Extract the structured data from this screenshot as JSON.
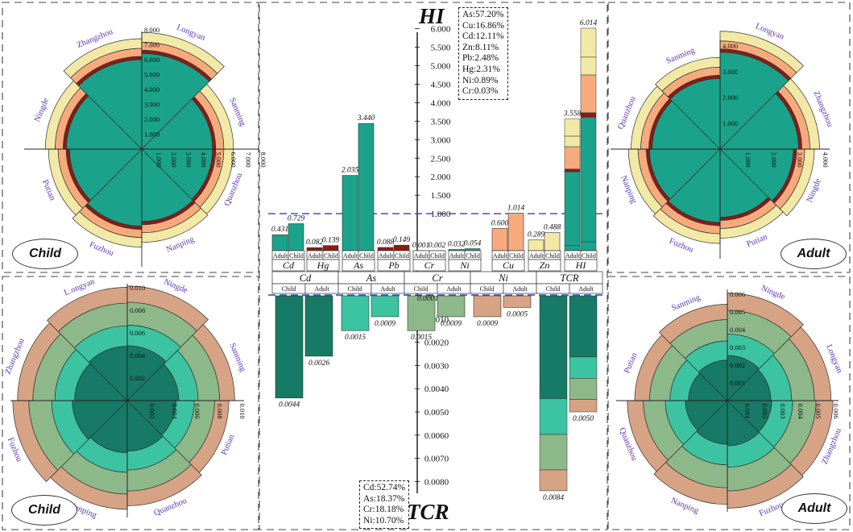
{
  "colors": {
    "teal": "#1aa38a",
    "teal_dark": "#167a66",
    "orange": "#f7ab7d",
    "pale_yellow": "#f1e9a5",
    "dark_red": "#8b1b14",
    "tan": "#d7a385",
    "sage": "#8db889",
    "light_teal": "#3cc3a2",
    "dashed_line": "#2b3fd6"
  },
  "center": {
    "hi_title": "HI",
    "tcr_title": "TCR",
    "hi_percent": [
      "As:57.20%",
      "Cu:16.86%",
      "Cd:12.11%",
      "Zn:8.11%",
      "Pb:2.48%",
      "Hg:2.31%",
      "Ni:0.89%",
      "Cr:0.03%"
    ],
    "tcr_percent": [
      "Cd:52.74%",
      "As:18.37%",
      "Cr:18.18%",
      "Ni:10.70%"
    ],
    "hi_ticks": [
      "1.000",
      "1.500",
      "2.000",
      "2.500",
      "3.000",
      "3.500",
      "4.000",
      "4.500",
      "5.000",
      "5.500",
      "6.000"
    ],
    "tcr_ticks": [
      "0.0010",
      "0.0020",
      "0.0030",
      "0.0040",
      "0.0050",
      "0.0060",
      "0.0070",
      "0.0080"
    ]
  },
  "panel_labels": {
    "child": "Child",
    "adult": "Adult"
  },
  "chart_data": [
    {
      "type": "bar",
      "title": "HI",
      "categories": [
        "Cd",
        "Hg",
        "As",
        "Pb",
        "Cr",
        "Ni",
        "Cu",
        "Zn",
        "HI"
      ],
      "group_labels": [
        "Adult",
        "Child"
      ],
      "series": [
        {
          "name": "Adult",
          "values": [
            0.431,
            0.082,
            2.035,
            0.088,
            0.001,
            0.032,
            0.6,
            0.289,
            3.558
          ],
          "labels": [
            "0.431",
            "0.082",
            "2.035",
            "0.088",
            "0.001",
            "0.032",
            "0.600",
            "0.289",
            "3.558"
          ]
        },
        {
          "name": "Child",
          "values": [
            0.729,
            0.139,
            3.44,
            0.149,
            0.002,
            0.054,
            1.014,
            0.488,
            6.014
          ],
          "labels": [
            "0.729",
            "0.139",
            "3.440",
            "0.149",
            "0.002",
            "0.054",
            "1.014",
            "0.488",
            "6.014"
          ]
        }
      ],
      "threshold": 1.0,
      "ylim": [
        0,
        6.0
      ]
    },
    {
      "type": "bar",
      "title": "TCR",
      "categories": [
        "Cd",
        "As",
        "Cr",
        "Ni",
        "TCR"
      ],
      "group_labels": [
        "Child",
        "Adult"
      ],
      "series": [
        {
          "name": "Child",
          "values": [
            0.0044,
            0.0015,
            0.0015,
            0.0009,
            0.0084
          ],
          "labels": [
            "0.0044",
            "0.0015",
            "0.0015",
            "0.0009",
            "0.0084"
          ]
        },
        {
          "name": "Adult",
          "values": [
            0.0026,
            0.0009,
            0.0009,
            0.0005,
            0.005
          ],
          "labels": [
            "0.0026",
            "0.0009",
            "0.0009",
            "0.0005",
            "0.0050"
          ]
        }
      ],
      "threshold": 0.0001,
      "threshold_label": "0.0001",
      "ylim": [
        0,
        0.0085
      ]
    },
    {
      "type": "pie",
      "title": "HI Child",
      "categories": [
        "Longyan",
        "Sanming",
        "Quanzhou",
        "Nanping",
        "Fuzhou",
        "Putian",
        "Ningde",
        "Zhangzhou"
      ],
      "values": [
        7.5,
        5.9,
        5.9,
        6.0,
        6.3,
        6.0,
        6.2,
        7.1
      ],
      "axis_ticks": [
        "1.000",
        "2.000",
        "3.000",
        "4.000",
        "5.000",
        "6.000",
        "7.000",
        "8.000"
      ]
    },
    {
      "type": "pie",
      "title": "HI Adult",
      "categories": [
        "Longyan",
        "Zhangzhou",
        "Ningde",
        "Putian",
        "Fuzhou",
        "Nanping",
        "Quanzhou",
        "Sanming"
      ],
      "values": [
        4.5,
        3.8,
        3.6,
        3.4,
        3.6,
        3.5,
        3.4,
        3.5
      ],
      "axis_ticks": [
        "1.000",
        "2.000",
        "3.000",
        "4.000"
      ]
    },
    {
      "type": "pie",
      "title": "TCR Child",
      "categories": [
        "Ningde",
        "Sanming",
        "Putian",
        "Quanzhou",
        "Nanping",
        "Fuzhou",
        "Zhangzhou",
        "L.ongyan"
      ],
      "values": [
        0.0098,
        0.0092,
        0.0087,
        0.009,
        0.0093,
        0.0098,
        0.0094,
        0.0097
      ],
      "axis_ticks": [
        "0.002",
        "0.004",
        "0.006",
        "0.008",
        "0.010"
      ]
    },
    {
      "type": "pie",
      "title": "TCR Adult",
      "categories": [
        "Ningde",
        "Longyan",
        "Zhangzhou",
        "Fuzhou",
        "Nanping",
        "Quanzhou",
        "Putian",
        "Sanming"
      ],
      "values": [
        0.0058,
        0.0056,
        0.0057,
        0.0058,
        0.0056,
        0.0054,
        0.005,
        0.0052
      ],
      "axis_ticks": [
        "0.001",
        "0.002",
        "0.003",
        "0.004",
        "0.005",
        "0.006"
      ]
    }
  ]
}
